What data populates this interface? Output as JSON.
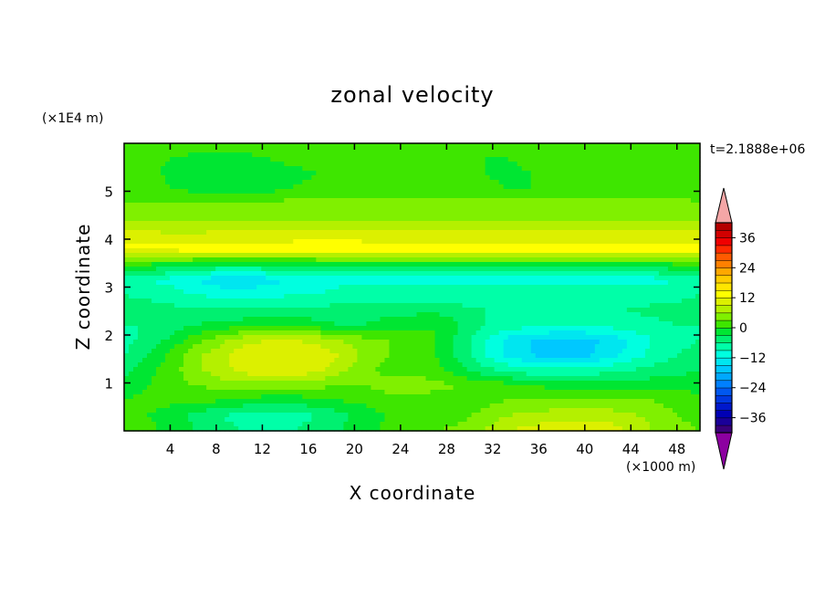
{
  "chart_data": {
    "type": "heatmap",
    "title": "zonal velocity",
    "xlabel": "X coordinate",
    "ylabel": "Z coordinate",
    "x_unit": "(×1000 m)",
    "y_unit": "(×1E4 m)",
    "time_label": "t=2.1888e+06",
    "xlim": [
      0,
      50
    ],
    "ylim": [
      0,
      6
    ],
    "x_ticks": [
      4,
      8,
      12,
      16,
      20,
      24,
      28,
      32,
      36,
      40,
      44,
      48
    ],
    "y_ticks": [
      1,
      2,
      3,
      4,
      5
    ],
    "colorbar": {
      "levels": [
        -42,
        -39,
        -36,
        -33,
        -30,
        -27,
        -24,
        -21,
        -18,
        -15,
        -12,
        -9,
        -6,
        -3,
        0,
        3,
        6,
        9,
        12,
        15,
        18,
        21,
        24,
        27,
        30,
        33,
        36,
        39,
        42
      ],
      "tick_labels": [
        "36",
        "24",
        "12",
        "0",
        "−12",
        "−24",
        "−36"
      ],
      "tick_values": [
        36,
        24,
        12,
        0,
        -12,
        -24,
        -36
      ],
      "colors": [
        "#3a007a",
        "#1a0099",
        "#0000b4",
        "#0018cc",
        "#0038e0",
        "#0058f0",
        "#0080ff",
        "#00a8ff",
        "#00c8ff",
        "#00e6f0",
        "#00ffe0",
        "#00ffa8",
        "#00f070",
        "#00e632",
        "#3ee600",
        "#80f000",
        "#b4f000",
        "#dcf000",
        "#ffff00",
        "#ffe600",
        "#ffcc00",
        "#ffa800",
        "#ff8000",
        "#ff5a00",
        "#ff2a00",
        "#f00000",
        "#d20000",
        "#b40000"
      ],
      "over_color": "#f4a6a6",
      "under_color": "#8c00a0"
    },
    "field": [
      [
        2,
        2,
        2,
        2,
        2,
        2,
        2,
        2,
        2,
        2,
        2,
        2,
        2,
        2,
        2,
        2,
        2,
        2,
        2,
        2,
        2,
        2,
        2,
        2,
        2
      ],
      [
        2,
        1,
        0,
        -1,
        -1,
        -1,
        0,
        1,
        1,
        1,
        2,
        2,
        2,
        2,
        1,
        0,
        0,
        1,
        2,
        2,
        2,
        1,
        1,
        2,
        2
      ],
      [
        2,
        1,
        -1,
        -2,
        -3,
        -3,
        -2,
        -1,
        0,
        1,
        1,
        2,
        2,
        2,
        1,
        0,
        -1,
        0,
        1,
        1,
        1,
        1,
        2,
        2,
        2
      ],
      [
        2,
        2,
        0,
        -1,
        -2,
        -2,
        -1,
        0,
        1,
        1,
        2,
        2,
        2,
        2,
        2,
        1,
        0,
        0,
        1,
        2,
        2,
        2,
        2,
        2,
        2
      ],
      [
        3,
        3,
        3,
        3,
        4,
        4,
        4,
        4,
        4,
        4,
        4,
        4,
        4,
        4,
        4,
        4,
        4,
        4,
        4,
        4,
        4,
        4,
        4,
        4,
        3
      ],
      [
        6,
        6,
        6,
        6,
        6,
        6,
        6,
        6,
        6,
        6,
        6,
        6,
        6,
        6,
        6,
        6,
        6,
        6,
        6,
        6,
        6,
        6,
        6,
        6,
        6
      ],
      [
        10,
        10,
        9,
        9,
        10,
        10,
        10,
        10,
        11,
        11,
        10,
        10,
        10,
        10,
        10,
        10,
        10,
        10,
        10,
        10,
        10,
        10,
        10,
        10,
        10
      ],
      [
        13,
        13,
        13,
        14,
        14,
        14,
        14,
        14,
        14,
        14,
        14,
        14,
        14,
        14,
        14,
        14,
        14,
        14,
        14,
        14,
        14,
        14,
        14,
        14,
        13
      ],
      [
        1,
        0,
        -1,
        -2,
        -3,
        -3,
        -3,
        -3,
        -2,
        -1,
        -1,
        -1,
        -1,
        -1,
        -1,
        -1,
        -1,
        -1,
        -1,
        -1,
        -1,
        -1,
        -1,
        0,
        1
      ],
      [
        -8,
        -9,
        -10,
        -12,
        -14,
        -14,
        -13,
        -12,
        -11,
        -10,
        -10,
        -10,
        -10,
        -10,
        -10,
        -10,
        -10,
        -10,
        -10,
        -10,
        -10,
        -10,
        -10,
        -9,
        -8
      ],
      [
        -6,
        -7,
        -8,
        -9,
        -10,
        -11,
        -10,
        -9,
        -9,
        -8,
        -8,
        -8,
        -8,
        -8,
        -8,
        -8,
        -8,
        -8,
        -8,
        -8,
        -8,
        -8,
        -8,
        -7,
        -6
      ],
      [
        -4,
        -4,
        -5,
        -6,
        -6,
        -6,
        -6,
        -5,
        -5,
        -5,
        -4,
        -4,
        -4,
        -4,
        -5,
        -6,
        -7,
        -7,
        -7,
        -7,
        -6,
        -6,
        -5,
        -5,
        -4
      ],
      [
        -6,
        -6,
        -5,
        -3,
        -2,
        -1,
        -1,
        -1,
        -2,
        -3,
        -3,
        -2,
        -1,
        0,
        -3,
        -6,
        -7,
        -8,
        -8,
        -8,
        -8,
        -7,
        -7,
        -6,
        -6
      ],
      [
        -7,
        -5,
        -2,
        2,
        5,
        8,
        9,
        9,
        8,
        6,
        4,
        3,
        2,
        0,
        -4,
        -9,
        -13,
        -15,
        -16,
        -16,
        -15,
        -12,
        -9,
        -7,
        -6
      ],
      [
        -6,
        -3,
        1,
        5,
        8,
        11,
        12,
        12,
        11,
        9,
        5,
        3,
        2,
        0,
        -4,
        -9,
        -13,
        -15,
        -16,
        -16,
        -14,
        -11,
        -8,
        -6,
        -5
      ],
      [
        -4,
        -1,
        2,
        5,
        8,
        10,
        11,
        11,
        10,
        7,
        4,
        2,
        2,
        1,
        -2,
        -5,
        -7,
        -8,
        -8,
        -8,
        -7,
        -6,
        -5,
        -4,
        -3
      ],
      [
        -2,
        0,
        2,
        3,
        4,
        5,
        5,
        5,
        4,
        3,
        3,
        4,
        5,
        4,
        3,
        2,
        1,
        0,
        -1,
        -2,
        -2,
        -2,
        -1,
        -1,
        -1
      ],
      [
        0,
        1,
        1,
        1,
        0,
        -1,
        -2,
        -2,
        -1,
        0,
        1,
        2,
        2,
        1,
        1,
        2,
        3,
        3,
        3,
        3,
        3,
        3,
        3,
        2,
        1
      ],
      [
        1,
        0,
        -2,
        -4,
        -6,
        -7,
        -7,
        -7,
        -6,
        -4,
        -2,
        0,
        1,
        1,
        2,
        4,
        6,
        7,
        8,
        8,
        8,
        7,
        5,
        3,
        2
      ],
      [
        3,
        1,
        -1,
        -3,
        -5,
        -6,
        -6,
        -6,
        -5,
        -3,
        -1,
        1,
        2,
        3,
        4,
        6,
        9,
        10,
        11,
        12,
        11,
        9,
        6,
        4,
        3
      ]
    ]
  }
}
